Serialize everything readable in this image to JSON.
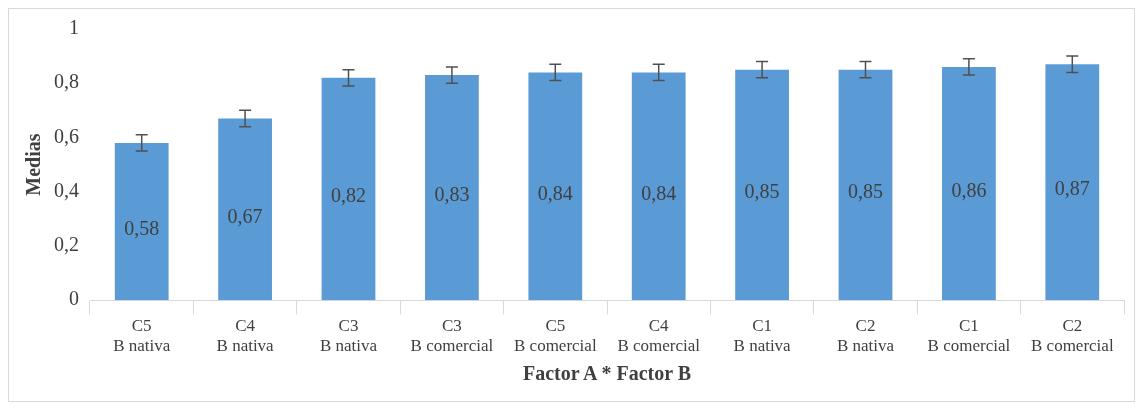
{
  "chart_data": {
    "type": "bar",
    "xlabel": "Factor A * Factor B",
    "ylabel": "Medias",
    "categories": [
      "C5\nB nativa",
      "C4\nB nativa",
      "C3\nB nativa",
      "C3\nB comercial",
      "C5\nB comercial",
      "C4\nB comercial",
      "C1\nB nativa",
      "C2\nB nativa",
      "C1\nB comercial",
      "C2\nB comercial"
    ],
    "values": [
      0.58,
      0.67,
      0.82,
      0.83,
      0.84,
      0.84,
      0.85,
      0.85,
      0.86,
      0.87
    ],
    "errors": [
      0.03,
      0.03,
      0.03,
      0.03,
      0.03,
      0.03,
      0.03,
      0.03,
      0.03,
      0.03
    ],
    "value_labels": [
      "0,58",
      "0,67",
      "0,82",
      "0,83",
      "0,84",
      "0,84",
      "0,85",
      "0,85",
      "0,86",
      "0,87"
    ],
    "color": "#5b9bd5",
    "ylim": [
      0,
      1
    ],
    "yticks": [
      {
        "value": 0,
        "label": "0"
      },
      {
        "value": 0.2,
        "label": "0,2"
      },
      {
        "value": 0.4,
        "label": "0,4"
      },
      {
        "value": 0.6,
        "label": "0,6"
      },
      {
        "value": 0.8,
        "label": "0,8"
      },
      {
        "value": 1,
        "label": "1"
      }
    ],
    "grid": false,
    "legend": false
  }
}
